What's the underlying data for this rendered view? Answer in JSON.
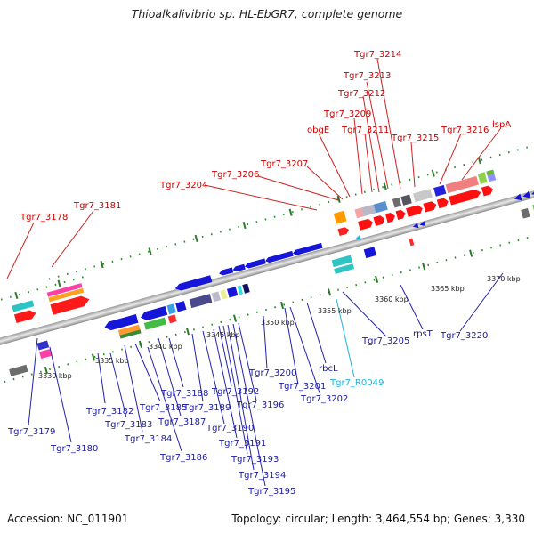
{
  "title": "Thioalkalivibrio sp. HL-EbGR7, complete genome",
  "footer": {
    "accession": "Accession: NC_011901",
    "topology": "Topology: circular; Length: 3,464,554 bp; Genes: 3,330"
  },
  "scale": [
    "3330 kbp",
    "3335 kbp",
    "3340 kbp",
    "3345 kbp",
    "3350 kbp",
    "3355 kbp",
    "3360 kbp",
    "3365 kbp",
    "3370 kbp"
  ],
  "top_labels": [
    "Tgr7_3178",
    "Tgr7_3181",
    "Tgr7_3204",
    "Tgr7_3206",
    "Tgr7_3207",
    "obgE",
    "Tgr7_3209",
    "Tgr7_3211",
    "Tgr7_3212",
    "Tgr7_3213",
    "Tgr7_3214",
    "Tgr7_3215",
    "Tgr7_3216",
    "lspA"
  ],
  "bottom_labels": [
    "Tgr7_3179",
    "Tgr7_3180",
    "Tgr7_3182",
    "Tgr7_3183",
    "Tgr7_3184",
    "Tgr7_3185",
    "Tgr7_3186",
    "Tgr7_3187",
    "Tgr7_3188",
    "Tgr7_3189",
    "Tgr7_3190",
    "Tgr7_3191",
    "Tgr7_3192",
    "Tgr7_3193",
    "Tgr7_3194",
    "Tgr7_3195",
    "Tgr7_3196",
    "Tgr7_3200",
    "Tgr7_3201",
    "Tgr7_3202",
    "rbcL",
    "Tgr7_R0049",
    "Tgr7_3205",
    "rpsT",
    "Tgr7_3220"
  ]
}
